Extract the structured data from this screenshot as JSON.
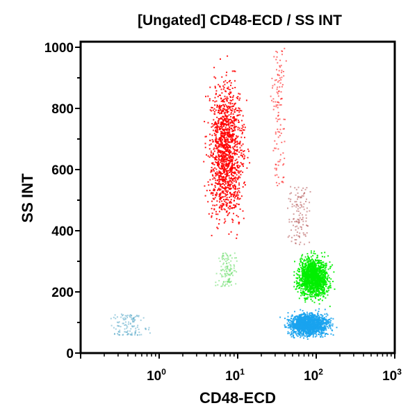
{
  "chart_data": {
    "type": "scatter",
    "title": "[Ungated] CD48-ECD / SS INT",
    "xlabel": "CD48-ECD",
    "ylabel": "SS INT",
    "x_scale": "log",
    "xlim": [
      0.1,
      1000
    ],
    "ylim": [
      0,
      1000
    ],
    "x_ticks": [
      {
        "value": 1,
        "base": "10",
        "exp": "0"
      },
      {
        "value": 10,
        "base": "10",
        "exp": "1"
      },
      {
        "value": 100,
        "base": "10",
        "exp": "2"
      },
      {
        "value": 1000,
        "base": "10",
        "exp": "3"
      }
    ],
    "y_ticks": [
      "0",
      "200",
      "400",
      "600",
      "800",
      "1000"
    ],
    "grid": false,
    "populations": [
      {
        "color": "#ff0000",
        "x_center": 7,
        "x_range": [
          2.5,
          18
        ],
        "y_range": [
          320,
          1000
        ],
        "density": "high"
      },
      {
        "color": "#ff0000",
        "x_center": 33,
        "x_range": [
          22,
          50
        ],
        "y_range": [
          550,
          1000
        ],
        "density": "low"
      },
      {
        "color": "#00ee00",
        "x_center": 90,
        "x_range": [
          40,
          220
        ],
        "y_range": [
          150,
          350
        ],
        "density": "high"
      },
      {
        "color": "#66dd66",
        "x_center": 7,
        "x_range": [
          4,
          12
        ],
        "y_range": [
          220,
          330
        ],
        "density": "low"
      },
      {
        "color": "#1aa3ee",
        "x_center": 80,
        "x_range": [
          25,
          250
        ],
        "y_range": [
          40,
          150
        ],
        "density": "high"
      },
      {
        "color": "#5aa9c8",
        "x_center": 0.4,
        "x_range": [
          0.18,
          1.2
        ],
        "y_range": [
          60,
          130
        ],
        "density": "low"
      },
      {
        "color": "#b05050",
        "x_center": 60,
        "x_range": [
          30,
          120
        ],
        "y_range": [
          350,
          550
        ],
        "density": "low"
      }
    ]
  }
}
